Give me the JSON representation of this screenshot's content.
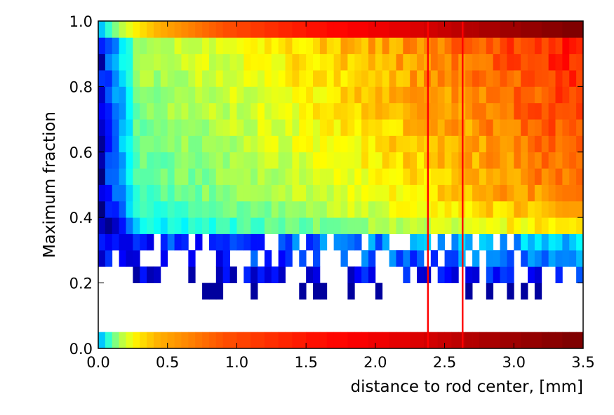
{
  "chart_data": {
    "type": "heatmap",
    "title": "",
    "xlabel": "distance to rod center, [mm]",
    "ylabel": "Maximum fraction",
    "xlim": [
      0.0,
      3.5
    ],
    "ylim": [
      0.0,
      1.0
    ],
    "xticks": [
      "0.0",
      "0.5",
      "1.0",
      "1.5",
      "2.0",
      "2.5",
      "3.0",
      "3.5"
    ],
    "yticks": [
      "0.0",
      "0.2",
      "0.4",
      "0.6",
      "0.8",
      "1.0"
    ],
    "colormap": "jet",
    "grid": false,
    "x_bin_width_mm": 0.05,
    "y_bins": [
      0.0,
      0.05,
      0.15,
      0.2,
      0.25,
      0.3,
      0.35,
      0.4,
      0.45,
      0.5,
      0.55,
      0.6,
      0.65,
      0.7,
      0.75,
      0.8,
      0.85,
      0.9,
      0.95,
      1.0
    ],
    "bottom_row_values": [
      0.32,
      0.42,
      0.5,
      0.56,
      0.6,
      0.64,
      0.66,
      0.68,
      0.7,
      0.71,
      0.72,
      0.73,
      0.74,
      0.75,
      0.76,
      0.77,
      0.78,
      0.79,
      0.8,
      0.8,
      0.81,
      0.81,
      0.82,
      0.82,
      0.83,
      0.83,
      0.84,
      0.84,
      0.85,
      0.85,
      0.86,
      0.86,
      0.86,
      0.87,
      0.87,
      0.87,
      0.88,
      0.88,
      0.88,
      0.89,
      0.89,
      0.89,
      0.9,
      0.9,
      0.9,
      0.91,
      0.91,
      0.92,
      0.92,
      0.93,
      0.93,
      0.94,
      0.94,
      0.95,
      0.95,
      0.96,
      0.96,
      0.96,
      0.97,
      0.97,
      0.97,
      0.98,
      0.98,
      0.98,
      0.99,
      0.99,
      0.99,
      1.0,
      1.0,
      1.0
    ],
    "top_row_values": [
      0.32,
      0.42,
      0.5,
      0.56,
      0.6,
      0.64,
      0.66,
      0.68,
      0.7,
      0.71,
      0.72,
      0.73,
      0.74,
      0.75,
      0.76,
      0.77,
      0.78,
      0.79,
      0.8,
      0.8,
      0.81,
      0.81,
      0.82,
      0.82,
      0.83,
      0.83,
      0.84,
      0.84,
      0.85,
      0.85,
      0.86,
      0.86,
      0.86,
      0.87,
      0.87,
      0.87,
      0.88,
      0.88,
      0.88,
      0.89,
      0.89,
      0.89,
      0.9,
      0.9,
      0.9,
      0.91,
      0.91,
      0.92,
      0.92,
      0.93,
      0.93,
      0.94,
      0.94,
      0.95,
      0.95,
      0.96,
      0.96,
      0.96,
      0.97,
      0.97,
      0.97,
      0.98,
      0.98,
      0.98,
      0.99,
      0.99,
      0.99,
      1.0,
      1.0,
      1.0
    ],
    "vertical_lines": [
      {
        "x": 2.38,
        "color": "#ff0000"
      },
      {
        "x": 2.63,
        "color": "#ff0000"
      }
    ]
  }
}
